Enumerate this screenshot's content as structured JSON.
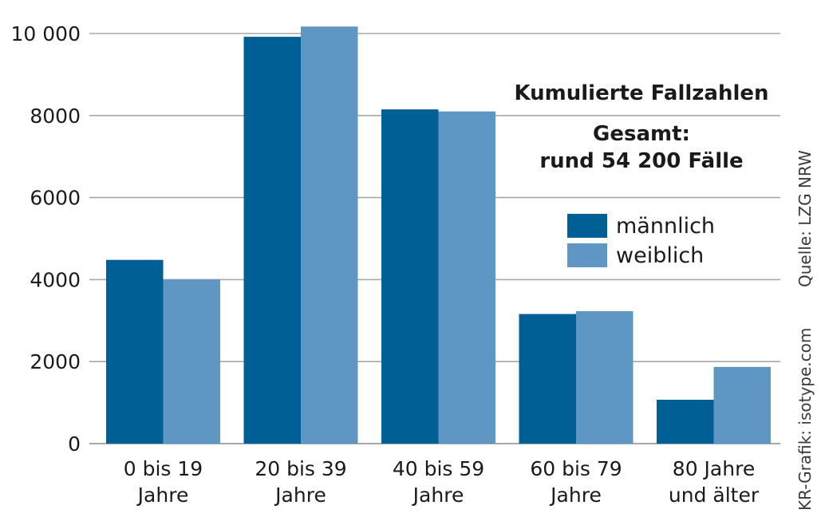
{
  "chart_data": {
    "type": "bar",
    "categories": [
      [
        "0 bis 19",
        "Jahre"
      ],
      [
        "20 bis 39",
        "Jahre"
      ],
      [
        "40 bis 59",
        "Jahre"
      ],
      [
        "60 bis 79",
        "Jahre"
      ],
      [
        "80 Jahre",
        "und älter"
      ]
    ],
    "series": [
      {
        "name": "männlich",
        "color": "#005f95",
        "values": [
          4480,
          9920,
          8150,
          3160,
          1070
        ]
      },
      {
        "name": "weiblich",
        "color": "#5f97c4",
        "values": [
          4000,
          10170,
          8100,
          3230,
          1870
        ]
      }
    ],
    "ylim": [
      0,
      10000
    ],
    "yticks": [
      0,
      2000,
      4000,
      6000,
      8000,
      10000
    ],
    "ytick_labels": [
      "0",
      "2000",
      "4000",
      "6000",
      "8000",
      "10 000"
    ],
    "grid": true,
    "legend_position": "right",
    "title": "Kumulierte Fallzahlen",
    "subtitle_lines": [
      "Gesamt:",
      "rund 54 200 Fälle"
    ],
    "source": "Quelle: LZG NRW",
    "credit": "KR-Grafik: isotype.com"
  }
}
